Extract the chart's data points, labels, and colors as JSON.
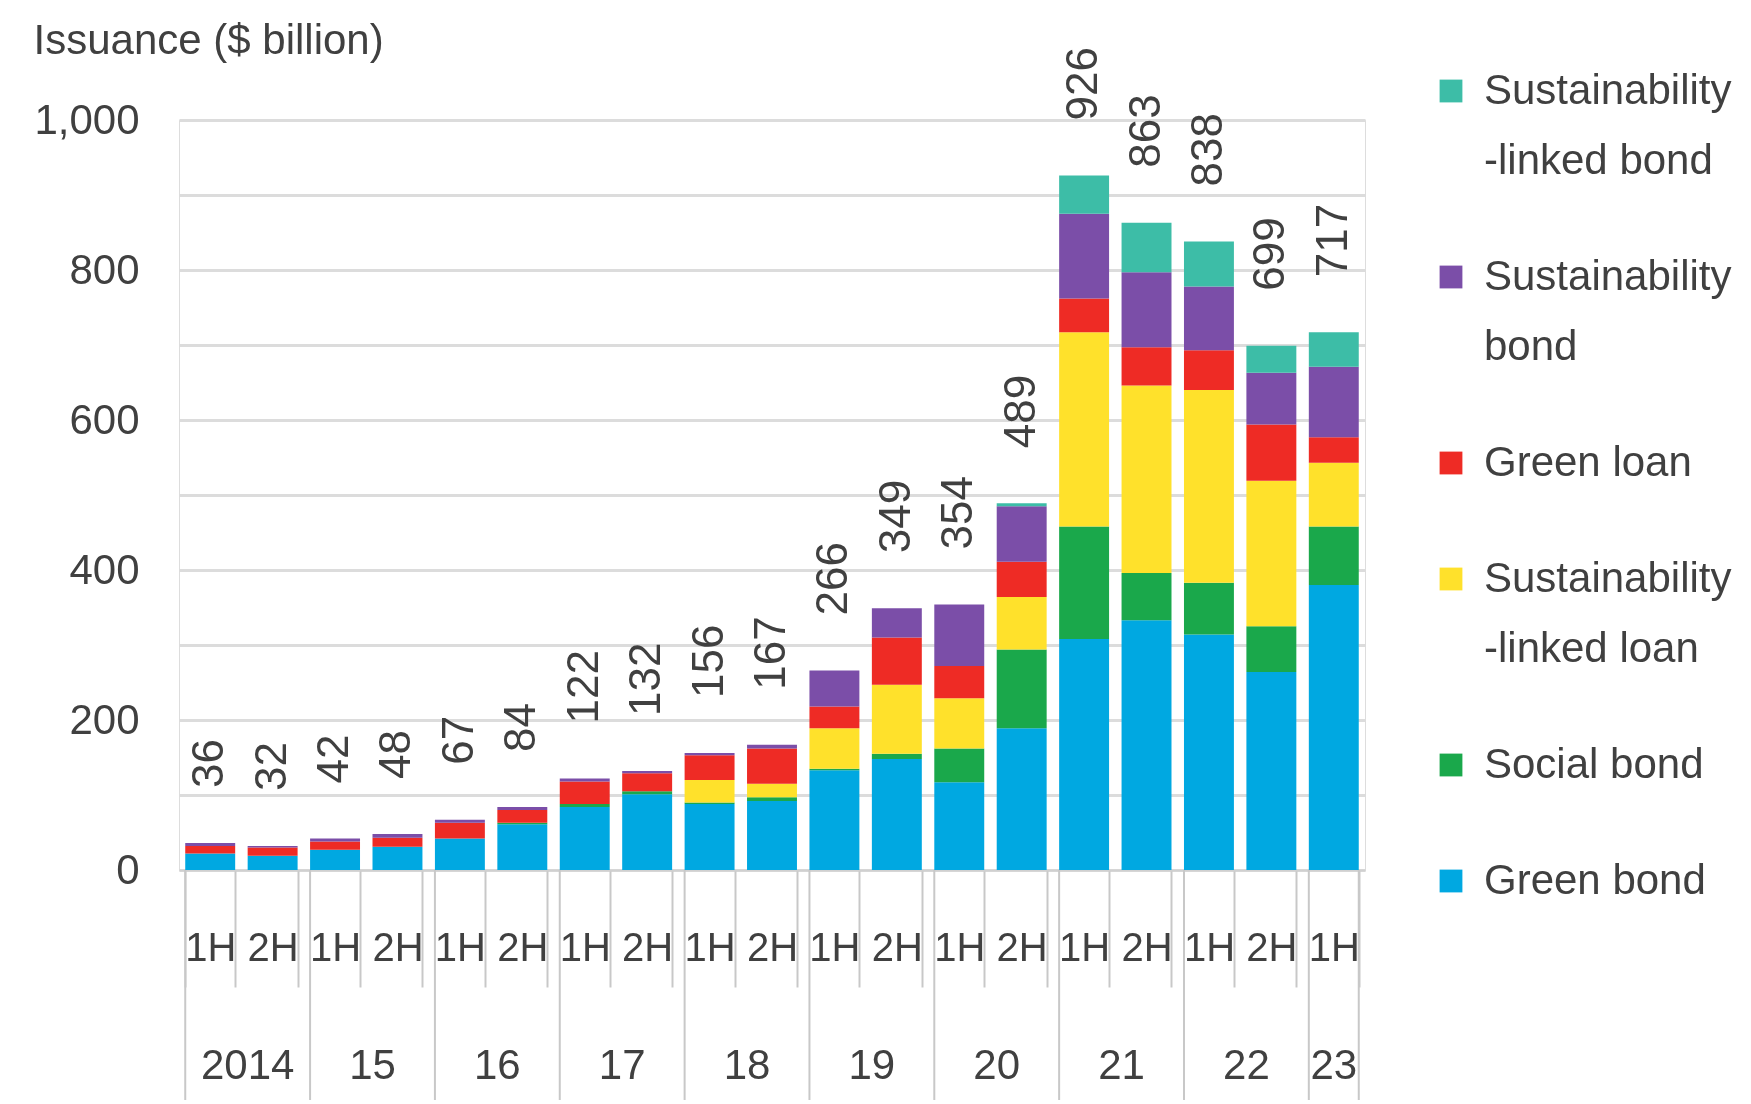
{
  "chart_data": {
    "type": "bar",
    "stacked": true,
    "ylabel": "Issuance ($ billion)",
    "categories": [
      "1H",
      "2H",
      "1H",
      "2H",
      "1H",
      "2H",
      "1H",
      "2H",
      "1H",
      "2H",
      "1H",
      "2H",
      "1H",
      "2H",
      "1H",
      "2H",
      "1H",
      "2H",
      "1H"
    ],
    "series": [
      {
        "name": "Green bond",
        "color": "#00a8e1",
        "values": [
          22,
          19,
          27,
          31,
          42,
          61,
          84,
          101,
          88,
          92,
          133,
          148,
          117,
          189,
          308,
          333,
          314,
          264,
          380
        ]
      },
      {
        "name": "Social bond",
        "color": "#1aa84b",
        "values": [
          null,
          null,
          null,
          null,
          null,
          2,
          4,
          4,
          2,
          5,
          2,
          7,
          45,
          105,
          150,
          63,
          69,
          61,
          78
        ]
      },
      {
        "name": "Sustainability-linked loan",
        "color": "#ffe12b",
        "values": [
          null,
          null,
          null,
          null,
          null,
          null,
          null,
          null,
          30,
          18,
          54,
          92,
          67,
          70,
          259,
          250,
          257,
          194,
          85
        ]
      },
      {
        "name": "Green loan",
        "color": "#ee2b25",
        "values": [
          10,
          11,
          11,
          12,
          21,
          17,
          30,
          24,
          33,
          47,
          29,
          63,
          43,
          47,
          45,
          51,
          53,
          75,
          34
        ]
      },
      {
        "name": "Sustainability bond",
        "color": "#7b4ea8",
        "values": [
          4,
          2,
          4,
          5,
          4,
          4,
          4,
          3,
          3,
          5,
          48,
          39,
          82,
          74,
          113,
          100,
          85,
          69,
          94
        ]
      },
      {
        "name": "Sustainability-linked bond",
        "color": "#3dbda7",
        "values": [
          null,
          null,
          null,
          null,
          null,
          null,
          null,
          null,
          null,
          null,
          null,
          null,
          null,
          4,
          51,
          66,
          60,
          36,
          46
        ]
      }
    ],
    "totals": [
      "36",
      "32",
      "42",
      "48",
      "67",
      "84",
      "122",
      "132",
      "156",
      "167",
      "266",
      "349",
      "354",
      "489",
      "926",
      "863",
      "838",
      "699",
      "717"
    ],
    "ylim": [
      0,
      1000
    ],
    "yticks": [
      0,
      {
        "value": 100,
        "label": null
      },
      200,
      {
        "value": 300,
        "label": null
      },
      400,
      {
        "value": 500,
        "label": null
      },
      600,
      {
        "value": 700,
        "label": null
      },
      800,
      {
        "value": 900,
        "label": null
      },
      {
        "value": 1000,
        "label": "1,000"
      }
    ],
    "grid": "y",
    "legend": "right",
    "annotations": [
      "2014",
      "15",
      "16",
      "17",
      "18",
      "19",
      "20",
      "21",
      "22",
      "23"
    ]
  }
}
